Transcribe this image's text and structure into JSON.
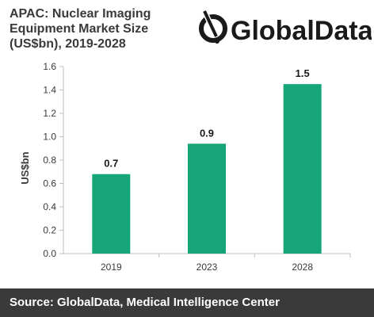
{
  "header": {
    "title_lines": [
      "APAC: Nuclear Imaging",
      "Equipment Market Size",
      "(US$bn), 2019-2028"
    ]
  },
  "logo": {
    "text": "GlobalData.",
    "icon": "globaldata-logo-icon",
    "color": "#1a1a1a"
  },
  "footer": {
    "source": "Source: GlobalData, Medical Intelligence Center"
  },
  "chart_data": {
    "type": "bar",
    "title": "APAC: Nuclear Imaging Equipment Market Size (US$bn), 2019-2028",
    "categories": [
      "2019",
      "2023",
      "2028"
    ],
    "values": [
      0.68,
      0.94,
      1.45
    ],
    "data_labels": [
      "0.7",
      "0.9",
      "1.5"
    ],
    "xlabel": "",
    "ylabel": "US$bn",
    "ylim": [
      0,
      1.6
    ],
    "yticks": [
      "0.0",
      "0.2",
      "0.4",
      "0.6",
      "0.8",
      "1.0",
      "1.2",
      "1.4",
      "1.6"
    ],
    "bar_color": "#16a578",
    "grid": false,
    "legend": "none"
  }
}
